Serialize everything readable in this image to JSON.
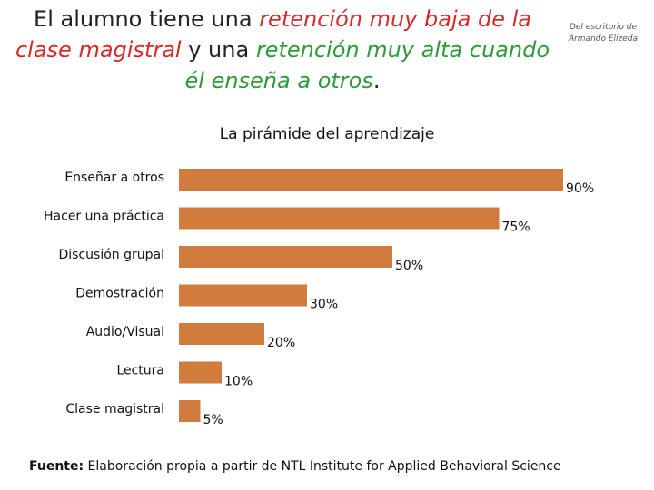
{
  "title": {
    "p1": "El alumno tiene una ",
    "p2": "retención muy baja de la clase magistral",
    "p3": " y una ",
    "p4": "retención muy alta cuando él enseña a otros",
    "p5": "."
  },
  "credit": {
    "line1": "Del escritorio de",
    "line2": "Armando Elizeda"
  },
  "colors": {
    "bar": "#d07c3e",
    "title_red": "#d12b2b",
    "title_green": "#2f9a3a"
  },
  "chart_data": {
    "type": "bar",
    "orientation": "horizontal",
    "title": "La pirámide del aprendizaje",
    "categories": [
      "Enseñar a otros",
      "Hacer una práctica",
      "Discusión grupal",
      "Demostración",
      "Audio/Visual",
      "Lectura",
      "Clase magistral"
    ],
    "values": [
      90,
      75,
      50,
      30,
      20,
      10,
      5
    ],
    "value_labels": [
      "90%",
      "75%",
      "50%",
      "30%",
      "20%",
      "10%",
      "5%"
    ],
    "unit": "%",
    "xlim": [
      0,
      100
    ],
    "grid": false,
    "legend": "none"
  },
  "source": {
    "label": "Fuente:",
    "text": " Elaboración propia a partir de NTL Institute for Applied Behavioral Science"
  }
}
